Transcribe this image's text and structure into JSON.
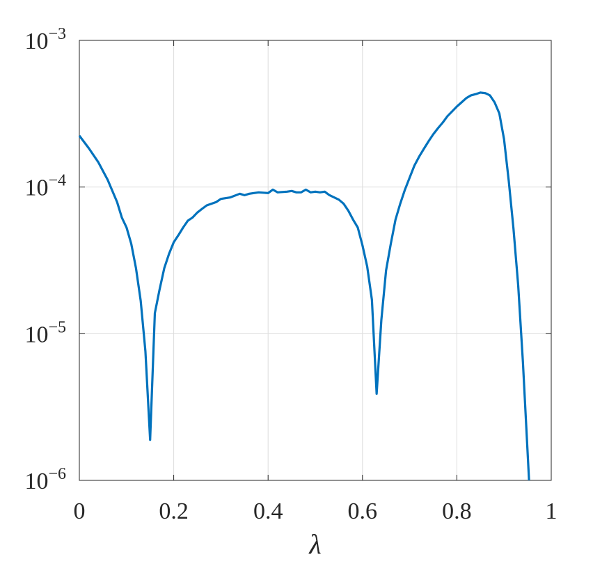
{
  "chart_data": {
    "type": "line",
    "xlabel": "λ",
    "log_y": true,
    "grid": true,
    "xlim": [
      0,
      1
    ],
    "xticks": [
      0,
      0.2,
      0.4,
      0.6,
      0.8,
      1
    ],
    "ylim": [
      1e-06,
      0.001
    ],
    "yticks": [
      {
        "value": 1e-06,
        "label": "10−6"
      },
      {
        "value": 1e-05,
        "label": "10−5"
      },
      {
        "value": 0.0001,
        "label": "10−4"
      },
      {
        "value": 0.001,
        "label": "10−3"
      }
    ],
    "series": [
      {
        "color": "#0072bd",
        "x": [
          0,
          0.02,
          0.04,
          0.06,
          0.08,
          0.09,
          0.1,
          0.11,
          0.12,
          0.13,
          0.14,
          0.15,
          0.16,
          0.17,
          0.18,
          0.19,
          0.2,
          0.21,
          0.22,
          0.23,
          0.24,
          0.25,
          0.26,
          0.27,
          0.28,
          0.29,
          0.3,
          0.32,
          0.34,
          0.35,
          0.36,
          0.38,
          0.4,
          0.41,
          0.42,
          0.44,
          0.45,
          0.46,
          0.47,
          0.48,
          0.49,
          0.5,
          0.51,
          0.52,
          0.53,
          0.55,
          0.56,
          0.57,
          0.58,
          0.59,
          0.6,
          0.61,
          0.62,
          0.63,
          0.64,
          0.65,
          0.66,
          0.67,
          0.68,
          0.69,
          0.7,
          0.71,
          0.72,
          0.73,
          0.74,
          0.75,
          0.76,
          0.77,
          0.78,
          0.79,
          0.8,
          0.81,
          0.82,
          0.83,
          0.84,
          0.85,
          0.86,
          0.87,
          0.88,
          0.89,
          0.9,
          0.91,
          0.92,
          0.93,
          0.94,
          0.953
        ],
        "values": [
          0.000224,
          0.000184,
          0.000148,
          0.000112,
          7.9e-05,
          6.2e-05,
          5.3e-05,
          4.1e-05,
          2.8e-05,
          1.68e-05,
          7.6e-06,
          1.89e-06,
          1.38e-05,
          2e-05,
          2.8e-05,
          3.5e-05,
          4.2e-05,
          4.7e-05,
          5.3e-05,
          5.9e-05,
          6.2e-05,
          6.7e-05,
          7.1e-05,
          7.5e-05,
          7.7e-05,
          7.9e-05,
          8.3e-05,
          8.5e-05,
          9e-05,
          8.8e-05,
          9e-05,
          9.2e-05,
          9.1e-05,
          9.6e-05,
          9.2e-05,
          9.3e-05,
          9.4e-05,
          9.2e-05,
          9.2e-05,
          9.6e-05,
          9.2e-05,
          9.3e-05,
          9.2e-05,
          9.3e-05,
          8.8e-05,
          8.2e-05,
          7.7e-05,
          6.9e-05,
          6e-05,
          5.3e-05,
          4e-05,
          2.87e-05,
          1.7e-05,
          3.9e-06,
          1.24e-05,
          2.7e-05,
          4.1e-05,
          6e-05,
          7.7e-05,
          9.6e-05,
          0.000116,
          0.00014,
          0.000161,
          0.000182,
          0.000205,
          0.000229,
          0.000252,
          0.000275,
          0.000304,
          0.000328,
          0.000354,
          0.000378,
          0.000404,
          0.000422,
          0.00043,
          0.000441,
          0.000437,
          0.000422,
          0.000378,
          0.000318,
          0.000212,
          0.00011,
          5.2e-05,
          2.13e-05,
          6.4e-06,
          1e-06
        ]
      }
    ]
  }
}
